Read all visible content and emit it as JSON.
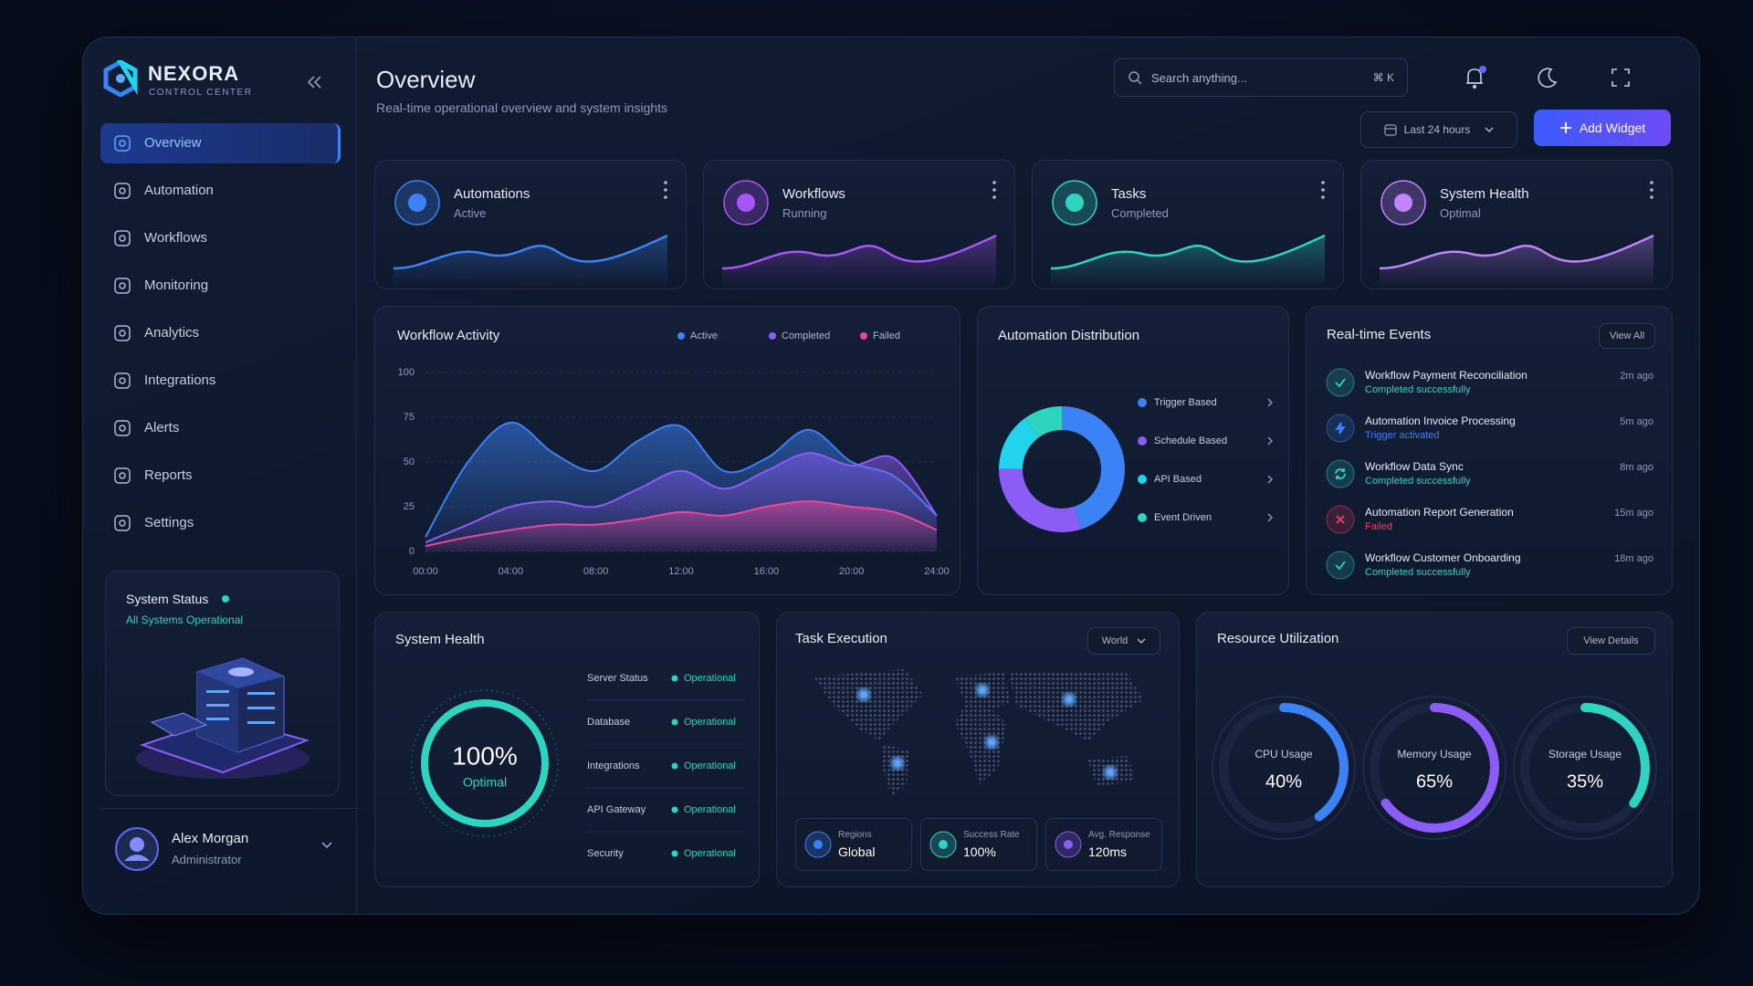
{
  "sidebar": {
    "brand": "NEXORA",
    "tagline": "CONTROL CENTER",
    "nav": [
      "Overview",
      "Automation",
      "Workflows",
      "Monitoring",
      "Analytics",
      "Integrations",
      "Alerts",
      "Reports",
      "Settings"
    ],
    "status": {
      "title": "System Status",
      "text": "All Systems Operational"
    },
    "user": {
      "name": "Alex Morgan",
      "role": "Administrator"
    }
  },
  "header": {
    "title": "Overview",
    "subtitle": "Real-time operational overview and system insights",
    "search": "Search anything...",
    "shortcut": "⌘ K",
    "range": "Last 24 hours",
    "button": "Add Widget"
  },
  "stat_cards": [
    {
      "title": "Automations",
      "status": "Active",
      "color": "#3b82f6"
    },
    {
      "title": "Workflows",
      "status": "Running",
      "color": "#a855f7"
    },
    {
      "title": "Tasks",
      "status": "Completed",
      "color": "#2dd4bf"
    },
    {
      "title": "System Health",
      "status": "Optimal",
      "color": "#c084fc"
    }
  ],
  "workflow_activity": {
    "type": "area",
    "title": "Workflow Activity",
    "categories": [
      "00:00",
      null,
      "04:00",
      null,
      "08:00",
      null,
      "12:00",
      null,
      "16:00",
      null,
      "20:00",
      null,
      "24:00"
    ],
    "series": [
      {
        "name": "Active",
        "color": "#3b82f6",
        "values": [
          8,
          50,
          72,
          55,
          45,
          62,
          70,
          45,
          52,
          68,
          50,
          42,
          20
        ]
      },
      {
        "name": "Completed",
        "color": "#8b5cf6",
        "values": [
          5,
          15,
          25,
          28,
          25,
          35,
          45,
          35,
          45,
          55,
          48,
          52,
          20
        ]
      },
      {
        "name": "Failed",
        "color": "#ec4899",
        "values": [
          3,
          8,
          12,
          15,
          15,
          18,
          22,
          20,
          25,
          28,
          25,
          22,
          12
        ]
      }
    ],
    "ylim": [
      0,
      100
    ],
    "yticks": [
      0,
      25,
      50,
      75,
      100
    ]
  },
  "distribution": {
    "type": "donut",
    "title": "Automation Distribution",
    "categories": [
      "Trigger Based",
      "Schedule Based",
      "API Based",
      "Event Driven"
    ],
    "values": [
      45,
      30,
      15,
      10
    ],
    "colors": [
      "#3b82f6",
      "#8b5cf6",
      "#22d3ee",
      "#2dd4bf"
    ]
  },
  "events": {
    "title": "Real-time Events",
    "action": "View All",
    "items": [
      {
        "title": "Workflow Payment Reconciliation",
        "status": "Completed successfully",
        "time": "2m ago",
        "icon": "check",
        "color": "#2dd4bf"
      },
      {
        "title": "Automation Invoice Processing",
        "status": "Trigger activated",
        "time": "5m ago",
        "icon": "bolt",
        "color": "#3b82f6"
      },
      {
        "title": "Workflow Data Sync",
        "status": "Completed successfully",
        "time": "8m ago",
        "icon": "sync",
        "color": "#2dd4bf"
      },
      {
        "title": "Automation Report Generation",
        "status": "Failed",
        "time": "15m ago",
        "icon": "x",
        "color": "#f43f5e"
      },
      {
        "title": "Workflow Customer Onboarding",
        "status": "Completed successfully",
        "time": "18m ago",
        "icon": "check",
        "color": "#2dd4bf"
      }
    ]
  },
  "system_health": {
    "title": "System Health",
    "value": 100,
    "value_label": "100%",
    "lim": [
      0,
      100
    ],
    "status": "Optimal",
    "rows": [
      [
        "Server Status",
        "Operational"
      ],
      [
        "Database",
        "Operational"
      ],
      [
        "Integrations",
        "Operational"
      ],
      [
        "API Gateway",
        "Operational"
      ],
      [
        "Security",
        "Operational"
      ]
    ]
  },
  "task_execution": {
    "title": "Task Execution",
    "filter": "World",
    "stats": [
      {
        "label": "Regions",
        "value": "Global"
      },
      {
        "label": "Success Rate",
        "value": "100%"
      },
      {
        "label": "Avg. Response",
        "value": "120ms"
      }
    ]
  },
  "resources": {
    "title": "Resource Utilization",
    "action": "View Details",
    "lim": [
      0,
      100
    ],
    "gauges": [
      {
        "label": "CPU Usage",
        "value": 40,
        "value_label": "40%",
        "color": "#3b82f6"
      },
      {
        "label": "Memory Usage",
        "value": 65,
        "value_label": "65%",
        "color": "#8b5cf6"
      },
      {
        "label": "Storage Usage",
        "value": 35,
        "value_label": "35%",
        "color": "#2dd4bf"
      }
    ]
  }
}
